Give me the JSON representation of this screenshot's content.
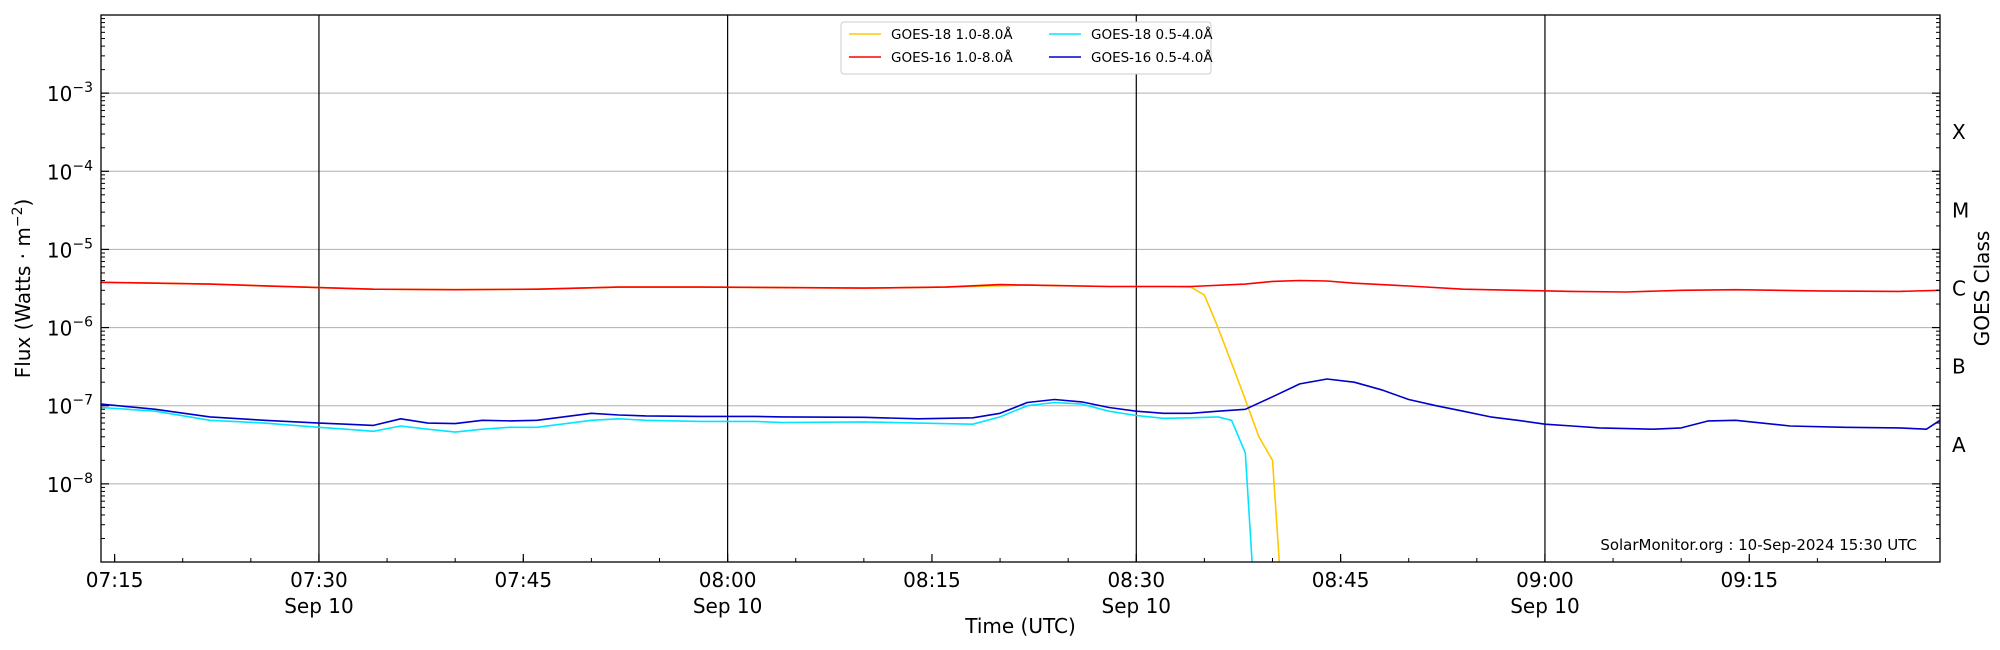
{
  "chart_data": {
    "type": "line",
    "xlabel": "Time (UTC)",
    "ylabel": "Flux (Watts · m",
    "ylabel_sup": "−2",
    "ylabel_end": ")",
    "y2label": "GOES Class",
    "xlim_minutes": [
      0,
      135
    ],
    "x_start": "2024-09-10T07:14",
    "ylim": [
      1e-09,
      0.01
    ],
    "yscale": "log",
    "grid": "horizontal",
    "legend_location": "upper center",
    "credit": "SolarMonitor.org : 10-Sep-2024 15:30 UTC",
    "x_ticks": [
      {
        "minute": 1,
        "time": "07:15",
        "date": ""
      },
      {
        "minute": 16,
        "time": "07:30",
        "date": "Sep 10",
        "vline": true
      },
      {
        "minute": 31,
        "time": "07:45",
        "date": ""
      },
      {
        "minute": 46,
        "time": "08:00",
        "date": "Sep 10",
        "vline": true
      },
      {
        "minute": 61,
        "time": "08:15",
        "date": ""
      },
      {
        "minute": 76,
        "time": "08:30",
        "date": "Sep 10",
        "vline": true
      },
      {
        "minute": 91,
        "time": "08:45",
        "date": ""
      },
      {
        "minute": 106,
        "time": "09:00",
        "date": "Sep 10",
        "vline": true
      },
      {
        "minute": 121,
        "time": "09:15",
        "date": ""
      }
    ],
    "y_ticks": [
      {
        "exp": -8,
        "label": "10",
        "sup": "−8"
      },
      {
        "exp": -7,
        "label": "10",
        "sup": "−7"
      },
      {
        "exp": -6,
        "label": "10",
        "sup": "−6"
      },
      {
        "exp": -5,
        "label": "10",
        "sup": "−5"
      },
      {
        "exp": -4,
        "label": "10",
        "sup": "−4"
      },
      {
        "exp": -3,
        "label": "10",
        "sup": "−3"
      }
    ],
    "class_labels": [
      {
        "exp": -7.5,
        "label": "A"
      },
      {
        "exp": -6.5,
        "label": "B"
      },
      {
        "exp": -5.5,
        "label": "C"
      },
      {
        "exp": -4.5,
        "label": "M"
      },
      {
        "exp": -3.5,
        "label": "X"
      }
    ],
    "series": [
      {
        "name": "GOES-18 1.0-8.0Å",
        "color": "#ffc800",
        "x": [
          0,
          8,
          16,
          20,
          26,
          32,
          38,
          44,
          50,
          56,
          62,
          68,
          74,
          78,
          80,
          81,
          82,
          83,
          84,
          85,
          86,
          86.5
        ],
        "y": [
          3.8e-06,
          3.6e-06,
          3.25e-06,
          3.1e-06,
          3.05e-06,
          3.1e-06,
          3.3e-06,
          3.3e-06,
          3.25e-06,
          3.2e-06,
          3.3e-06,
          3.5e-06,
          3.35e-06,
          3.35e-06,
          3.3e-06,
          2.6e-06,
          1e-06,
          3.5e-07,
          1.2e-07,
          4e-08,
          2e-08,
          1e-09
        ]
      },
      {
        "name": "GOES-16 1.0-8.0Å",
        "color": "#ff0000",
        "x": [
          0,
          8,
          16,
          20,
          26,
          32,
          38,
          44,
          50,
          56,
          62,
          66,
          68,
          74,
          80,
          84,
          86,
          88,
          90,
          92,
          96,
          100,
          104,
          108,
          112,
          116,
          120,
          126,
          132,
          135
        ],
        "y": [
          3.8e-06,
          3.6e-06,
          3.25e-06,
          3.1e-06,
          3.05e-06,
          3.1e-06,
          3.3e-06,
          3.3e-06,
          3.25e-06,
          3.2e-06,
          3.3e-06,
          3.55e-06,
          3.5e-06,
          3.35e-06,
          3.35e-06,
          3.6e-06,
          3.9e-06,
          4e-06,
          3.95e-06,
          3.7e-06,
          3.4e-06,
          3.1e-06,
          3e-06,
          2.9e-06,
          2.85e-06,
          3e-06,
          3.05e-06,
          2.95e-06,
          2.9e-06,
          3e-06
        ]
      },
      {
        "name": "GOES-18 0.5-4.0Å",
        "color": "#00e6ff",
        "x": [
          0,
          4,
          8,
          12,
          16,
          18,
          20,
          22,
          24,
          26,
          28,
          30,
          32,
          36,
          38,
          40,
          44,
          48,
          50,
          56,
          60,
          64,
          66,
          68,
          70,
          72,
          74,
          76,
          78,
          80,
          82,
          83,
          84,
          84.5
        ],
        "y": [
          9.5e-08,
          8.5e-08,
          6.5e-08,
          6e-08,
          5.3e-08,
          5e-08,
          4.7e-08,
          5.5e-08,
          5e-08,
          4.6e-08,
          5e-08,
          5.3e-08,
          5.3e-08,
          6.5e-08,
          6.8e-08,
          6.5e-08,
          6.3e-08,
          6.3e-08,
          6.1e-08,
          6.2e-08,
          6e-08,
          5.8e-08,
          7.2e-08,
          1e-07,
          1.1e-07,
          1.05e-07,
          8.5e-08,
          7.5e-08,
          6.9e-08,
          7e-08,
          7.2e-08,
          6.5e-08,
          2.5e-08,
          1e-09
        ]
      },
      {
        "name": "GOES-16 0.5-4.0Å",
        "color": "#0000cc",
        "x": [
          0,
          4,
          8,
          12,
          16,
          18,
          20,
          22,
          24,
          26,
          28,
          30,
          32,
          36,
          38,
          40,
          44,
          48,
          50,
          56,
          60,
          64,
          66,
          68,
          70,
          72,
          74,
          76,
          78,
          80,
          82,
          84,
          86,
          88,
          90,
          92,
          94,
          96,
          98,
          100,
          102,
          104,
          106,
          108,
          110,
          112,
          114,
          116,
          118,
          120,
          124,
          128,
          132,
          134,
          135
        ],
        "y": [
          1.05e-07,
          9e-08,
          7.2e-08,
          6.5e-08,
          6e-08,
          5.8e-08,
          5.6e-08,
          6.8e-08,
          6e-08,
          5.9e-08,
          6.5e-08,
          6.4e-08,
          6.5e-08,
          8e-08,
          7.6e-08,
          7.4e-08,
          7.3e-08,
          7.3e-08,
          7.2e-08,
          7.1e-08,
          6.8e-08,
          7e-08,
          8e-08,
          1.1e-07,
          1.2e-07,
          1.12e-07,
          9.5e-08,
          8.5e-08,
          8e-08,
          8e-08,
          8.5e-08,
          9e-08,
          1.3e-07,
          1.9e-07,
          2.2e-07,
          2e-07,
          1.6e-07,
          1.2e-07,
          1e-07,
          8.5e-08,
          7.2e-08,
          6.5e-08,
          5.8e-08,
          5.5e-08,
          5.2e-08,
          5.1e-08,
          5e-08,
          5.2e-08,
          6.4e-08,
          6.5e-08,
          5.5e-08,
          5.3e-08,
          5.2e-08,
          5e-08,
          6.5e-08
        ]
      }
    ]
  }
}
